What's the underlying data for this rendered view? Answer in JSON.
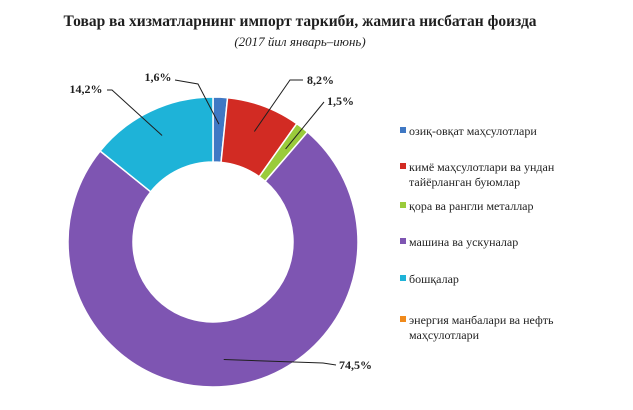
{
  "chart_data": {
    "type": "pie",
    "title": "Товар ва хизматларнинг импорт таркиби, жамига нисбатан фоизда",
    "subtitle": "(2017 йил январь–июнь)",
    "legend_position": "right",
    "slices": [
      {
        "name": "озиқ-овқат маҳсулотлари",
        "legend_lines": [
          "озиқ-овқат маҳсулотлари"
        ],
        "value": 1.6,
        "label": "1,6%",
        "color": "#3f78c4"
      },
      {
        "name": "кимё маҳсулотлари ва ундан тайёрланган буюмлар",
        "legend_lines": [
          "кимё маҳсулотлари ва ундан",
          "тайёрланган буюмлар"
        ],
        "value": 8.2,
        "label": "8,2%",
        "color": "#d22b23"
      },
      {
        "name": "қора ва рангли металлар",
        "legend_lines": [
          "қора ва рангли металлар"
        ],
        "value": 1.5,
        "label": "1,5%",
        "color": "#9acb3b"
      },
      {
        "name": "машина ва ускуналар",
        "legend_lines": [
          "машина ва ускуналар"
        ],
        "value": 74.5,
        "label": "74,5%",
        "color": "#7e55b2"
      },
      {
        "name": "бошқалар",
        "legend_lines": [
          "бошқалар"
        ],
        "value": 14.2,
        "label": "14,2%",
        "color": "#1eb3d8"
      },
      {
        "name": "энергия манбалари ва нефть маҳсулотлари",
        "legend_lines": [
          "энергия манбалари ва нефть",
          "маҳсулотлари"
        ],
        "value": 0,
        "label": "",
        "color": "#f08a1c"
      }
    ]
  }
}
